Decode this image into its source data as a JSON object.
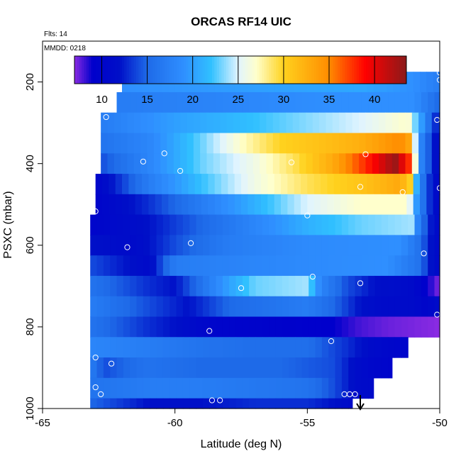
{
  "chart_data": {
    "type": "heatmap",
    "title": "ORCAS RF14 UIC",
    "annotations": {
      "flights": "Flts: 14",
      "date": "MMDD: 0218"
    },
    "xlabel": "Latitude (deg N)",
    "ylabel": "PSXC (mbar)",
    "xlim": [
      -65,
      -50
    ],
    "ylim": [
      1000,
      100
    ],
    "x_ticks": [
      -65,
      -60,
      -55,
      -50
    ],
    "y_ticks": [
      200,
      400,
      600,
      800,
      1000
    ],
    "colorbar": {
      "range": [
        7,
        43.5
      ],
      "ticks": [
        10,
        15,
        20,
        25,
        30,
        35,
        40
      ],
      "stops": [
        {
          "v": 7,
          "c": "#8a2be2"
        },
        {
          "v": 9,
          "c": "#0000cc"
        },
        {
          "v": 12,
          "c": "#0010c8"
        },
        {
          "v": 15,
          "c": "#1e6ae8"
        },
        {
          "v": 19,
          "c": "#2f8fff"
        },
        {
          "v": 22,
          "c": "#30c0ff"
        },
        {
          "v": 25,
          "c": "#e0f4ff"
        },
        {
          "v": 27,
          "c": "#ffffcc"
        },
        {
          "v": 30,
          "c": "#ffd21e"
        },
        {
          "v": 35,
          "c": "#ff8c00"
        },
        {
          "v": 39,
          "c": "#ff0000"
        },
        {
          "v": 43.5,
          "c": "#8b1a1a"
        }
      ]
    },
    "level_rows": [
      {
        "p_top": 175,
        "p_bot": 225,
        "lat_min": -62.0,
        "lat_max": -50.0,
        "values": [
          [
            -62,
            19
          ],
          [
            -57,
            20
          ],
          [
            -53,
            20.5
          ],
          [
            -51,
            19
          ],
          [
            -50,
            17
          ]
        ]
      },
      {
        "p_top": 225,
        "p_bot": 275,
        "lat_min": -62.2,
        "lat_max": -50.0,
        "values": [
          [
            -62.2,
            17
          ],
          [
            -58,
            18
          ],
          [
            -54,
            19
          ],
          [
            -51,
            19
          ],
          [
            -50,
            15
          ]
        ]
      },
      {
        "p_top": 275,
        "p_bot": 325,
        "lat_min": -62.8,
        "lat_max": -50.0,
        "values": [
          [
            -62.8,
            17
          ],
          [
            -60,
            20
          ],
          [
            -57,
            22
          ],
          [
            -53,
            25
          ],
          [
            -51.2,
            27
          ],
          [
            -50.7,
            20
          ],
          [
            -50.2,
            13
          ]
        ]
      },
      {
        "p_top": 325,
        "p_bot": 375,
        "lat_min": -62.8,
        "lat_max": -50.0,
        "values": [
          [
            -62.8,
            16
          ],
          [
            -61,
            18
          ],
          [
            -59,
            23
          ],
          [
            -57.5,
            27
          ],
          [
            -56,
            30
          ],
          [
            -53,
            32.5
          ],
          [
            -51.5,
            35
          ],
          [
            -51.1,
            33
          ],
          [
            -50.8,
            19
          ],
          [
            -50.2,
            12
          ]
        ]
      },
      {
        "p_top": 375,
        "p_bot": 425,
        "lat_min": -62.8,
        "lat_max": -50.0,
        "values": [
          [
            -62.8,
            14
          ],
          [
            -61,
            18
          ],
          [
            -59,
            23
          ],
          [
            -57,
            26
          ],
          [
            -55.5,
            29
          ],
          [
            -54,
            33
          ],
          [
            -52.5,
            39
          ],
          [
            -51.7,
            43
          ],
          [
            -51.1,
            37
          ],
          [
            -50.8,
            19
          ],
          [
            -50.2,
            12
          ]
        ]
      },
      {
        "p_top": 425,
        "p_bot": 475,
        "lat_min": -63.0,
        "lat_max": -50.0,
        "values": [
          [
            -63,
            10
          ],
          [
            -61,
            17
          ],
          [
            -59,
            22
          ],
          [
            -57,
            26
          ],
          [
            -55,
            29
          ],
          [
            -53,
            31
          ],
          [
            -51.5,
            33
          ],
          [
            -51.1,
            30
          ],
          [
            -50.8,
            18
          ],
          [
            -50.2,
            11
          ]
        ]
      },
      {
        "p_top": 475,
        "p_bot": 525,
        "lat_min": -63.0,
        "lat_max": -50.0,
        "values": [
          [
            -63,
            10
          ],
          [
            -61,
            13
          ],
          [
            -59,
            17
          ],
          [
            -57,
            21
          ],
          [
            -55,
            25
          ],
          [
            -53,
            27
          ],
          [
            -51.2,
            27
          ],
          [
            -50.8,
            18
          ],
          [
            -50.2,
            11
          ]
        ]
      },
      {
        "p_top": 525,
        "p_bot": 575,
        "lat_min": -63.2,
        "lat_max": -50.0,
        "values": [
          [
            -63.2,
            10
          ],
          [
            -61,
            12
          ],
          [
            -59,
            15
          ],
          [
            -57,
            18
          ],
          [
            -55,
            21
          ],
          [
            -53,
            23
          ],
          [
            -51,
            24
          ],
          [
            -50.8,
            17
          ],
          [
            -50.2,
            11
          ]
        ]
      },
      {
        "p_top": 575,
        "p_bot": 625,
        "lat_min": -63.2,
        "lat_max": -50.0,
        "values": [
          [
            -63.2,
            12
          ],
          [
            -61.5,
            11
          ],
          [
            -60,
            14
          ],
          [
            -58,
            17
          ],
          [
            -55,
            18.5
          ],
          [
            -51.5,
            19
          ],
          [
            -50.8,
            16
          ],
          [
            -50.2,
            11
          ]
        ]
      },
      {
        "p_top": 625,
        "p_bot": 675,
        "lat_min": -63.2,
        "lat_max": -50.0,
        "values": [
          [
            -63.2,
            14
          ],
          [
            -61,
            11
          ],
          [
            -60,
            17
          ],
          [
            -57,
            18
          ],
          [
            -55,
            18.5
          ],
          [
            -52,
            19
          ],
          [
            -50.8,
            16
          ],
          [
            -50.2,
            11
          ]
        ]
      },
      {
        "p_top": 675,
        "p_bot": 725,
        "lat_min": -63.2,
        "lat_max": -50.0,
        "values": [
          [
            -63.2,
            16
          ],
          [
            -61,
            13
          ],
          [
            -60,
            12
          ],
          [
            -59,
            16
          ],
          [
            -58,
            20
          ],
          [
            -57,
            23
          ],
          [
            -55,
            24
          ],
          [
            -54.5,
            18
          ],
          [
            -53.5,
            14
          ],
          [
            -52.5,
            12
          ],
          [
            -51,
            11
          ],
          [
            -50.5,
            9
          ],
          [
            -50.1,
            7.5
          ]
        ]
      },
      {
        "p_top": 725,
        "p_bot": 775,
        "lat_min": -63.2,
        "lat_max": -50.0,
        "values": [
          [
            -63.2,
            17
          ],
          [
            -61,
            14
          ],
          [
            -59.5,
            12
          ],
          [
            -58,
            15
          ],
          [
            -55,
            17
          ],
          [
            -54,
            15
          ],
          [
            -53,
            12
          ],
          [
            -52,
            11
          ],
          [
            -51,
            11
          ],
          [
            -50.5,
            10
          ],
          [
            -50.1,
            11
          ]
        ]
      },
      {
        "p_top": 775,
        "p_bot": 825,
        "lat_min": -63.2,
        "lat_max": -50.0,
        "values": [
          [
            -63.2,
            16
          ],
          [
            -61,
            13
          ],
          [
            -60,
            12
          ],
          [
            -58.5,
            10
          ],
          [
            -56,
            9.5
          ],
          [
            -54,
            9
          ],
          [
            -53,
            8
          ],
          [
            -52,
            7.5
          ],
          [
            -50,
            7
          ]
        ]
      },
      {
        "p_top": 825,
        "p_bot": 875,
        "lat_min": -63.2,
        "lat_max": -51.2,
        "values": [
          [
            -63.2,
            18
          ],
          [
            -61,
            17
          ],
          [
            -59,
            16
          ],
          [
            -57,
            15.5
          ],
          [
            -55,
            15.5
          ],
          [
            -53.5,
            13
          ],
          [
            -52.5,
            11
          ],
          [
            -51.5,
            10
          ]
        ]
      },
      {
        "p_top": 875,
        "p_bot": 925,
        "lat_min": -63.2,
        "lat_max": -51.8,
        "values": [
          [
            -63.2,
            17
          ],
          [
            -62.7,
            14
          ],
          [
            -61,
            16
          ],
          [
            -59,
            15
          ],
          [
            -56,
            15
          ],
          [
            -54,
            14
          ],
          [
            -53,
            11
          ],
          [
            -52,
            10
          ]
        ]
      },
      {
        "p_top": 925,
        "p_bot": 975,
        "lat_min": -63.2,
        "lat_max": -52.5,
        "values": [
          [
            -63.2,
            16
          ],
          [
            -61,
            17
          ],
          [
            -59,
            17
          ],
          [
            -57,
            16.5
          ],
          [
            -55,
            16
          ],
          [
            -54,
            14
          ],
          [
            -53,
            11
          ]
        ]
      },
      {
        "p_top": 975,
        "p_bot": 1000,
        "lat_min": -63.2,
        "lat_max": -53.3,
        "values": [
          [
            -63.2,
            15
          ],
          [
            -61,
            12
          ],
          [
            -59,
            12
          ],
          [
            -57,
            13
          ],
          [
            -55,
            13
          ],
          [
            -54,
            12
          ],
          [
            -53.3,
            11
          ]
        ]
      }
    ],
    "obs_points": [
      [
        -61.9,
        177
      ],
      [
        -61.8,
        177
      ],
      [
        -60.4,
        177
      ],
      [
        -57.5,
        177
      ],
      [
        -55.6,
        177
      ],
      [
        -50.0,
        177
      ],
      [
        -50.0,
        195
      ],
      [
        -62.6,
        286
      ],
      [
        -50.1,
        293
      ],
      [
        -60.4,
        375
      ],
      [
        -61.2,
        395
      ],
      [
        -59.8,
        418
      ],
      [
        -55.6,
        397
      ],
      [
        -52.8,
        377
      ],
      [
        -53.0,
        457
      ],
      [
        -51.4,
        470
      ],
      [
        -63.0,
        517
      ],
      [
        -55.0,
        527
      ],
      [
        -50.0,
        460
      ],
      [
        -61.8,
        605
      ],
      [
        -59.4,
        595
      ],
      [
        -50.6,
        620
      ],
      [
        -54.8,
        677
      ],
      [
        -57.5,
        705
      ],
      [
        -53.0,
        693
      ],
      [
        -50.1,
        770
      ],
      [
        -58.7,
        810
      ],
      [
        -54.1,
        835
      ],
      [
        -63.0,
        875
      ],
      [
        -62.4,
        890
      ],
      [
        -63.0,
        948
      ],
      [
        -62.8,
        965
      ],
      [
        -53.6,
        965
      ],
      [
        -53.4,
        965
      ],
      [
        -53.2,
        965
      ],
      [
        -58.6,
        980
      ],
      [
        -58.3,
        980
      ]
    ],
    "arrow": {
      "lat": -53.0,
      "direction": "down"
    }
  }
}
